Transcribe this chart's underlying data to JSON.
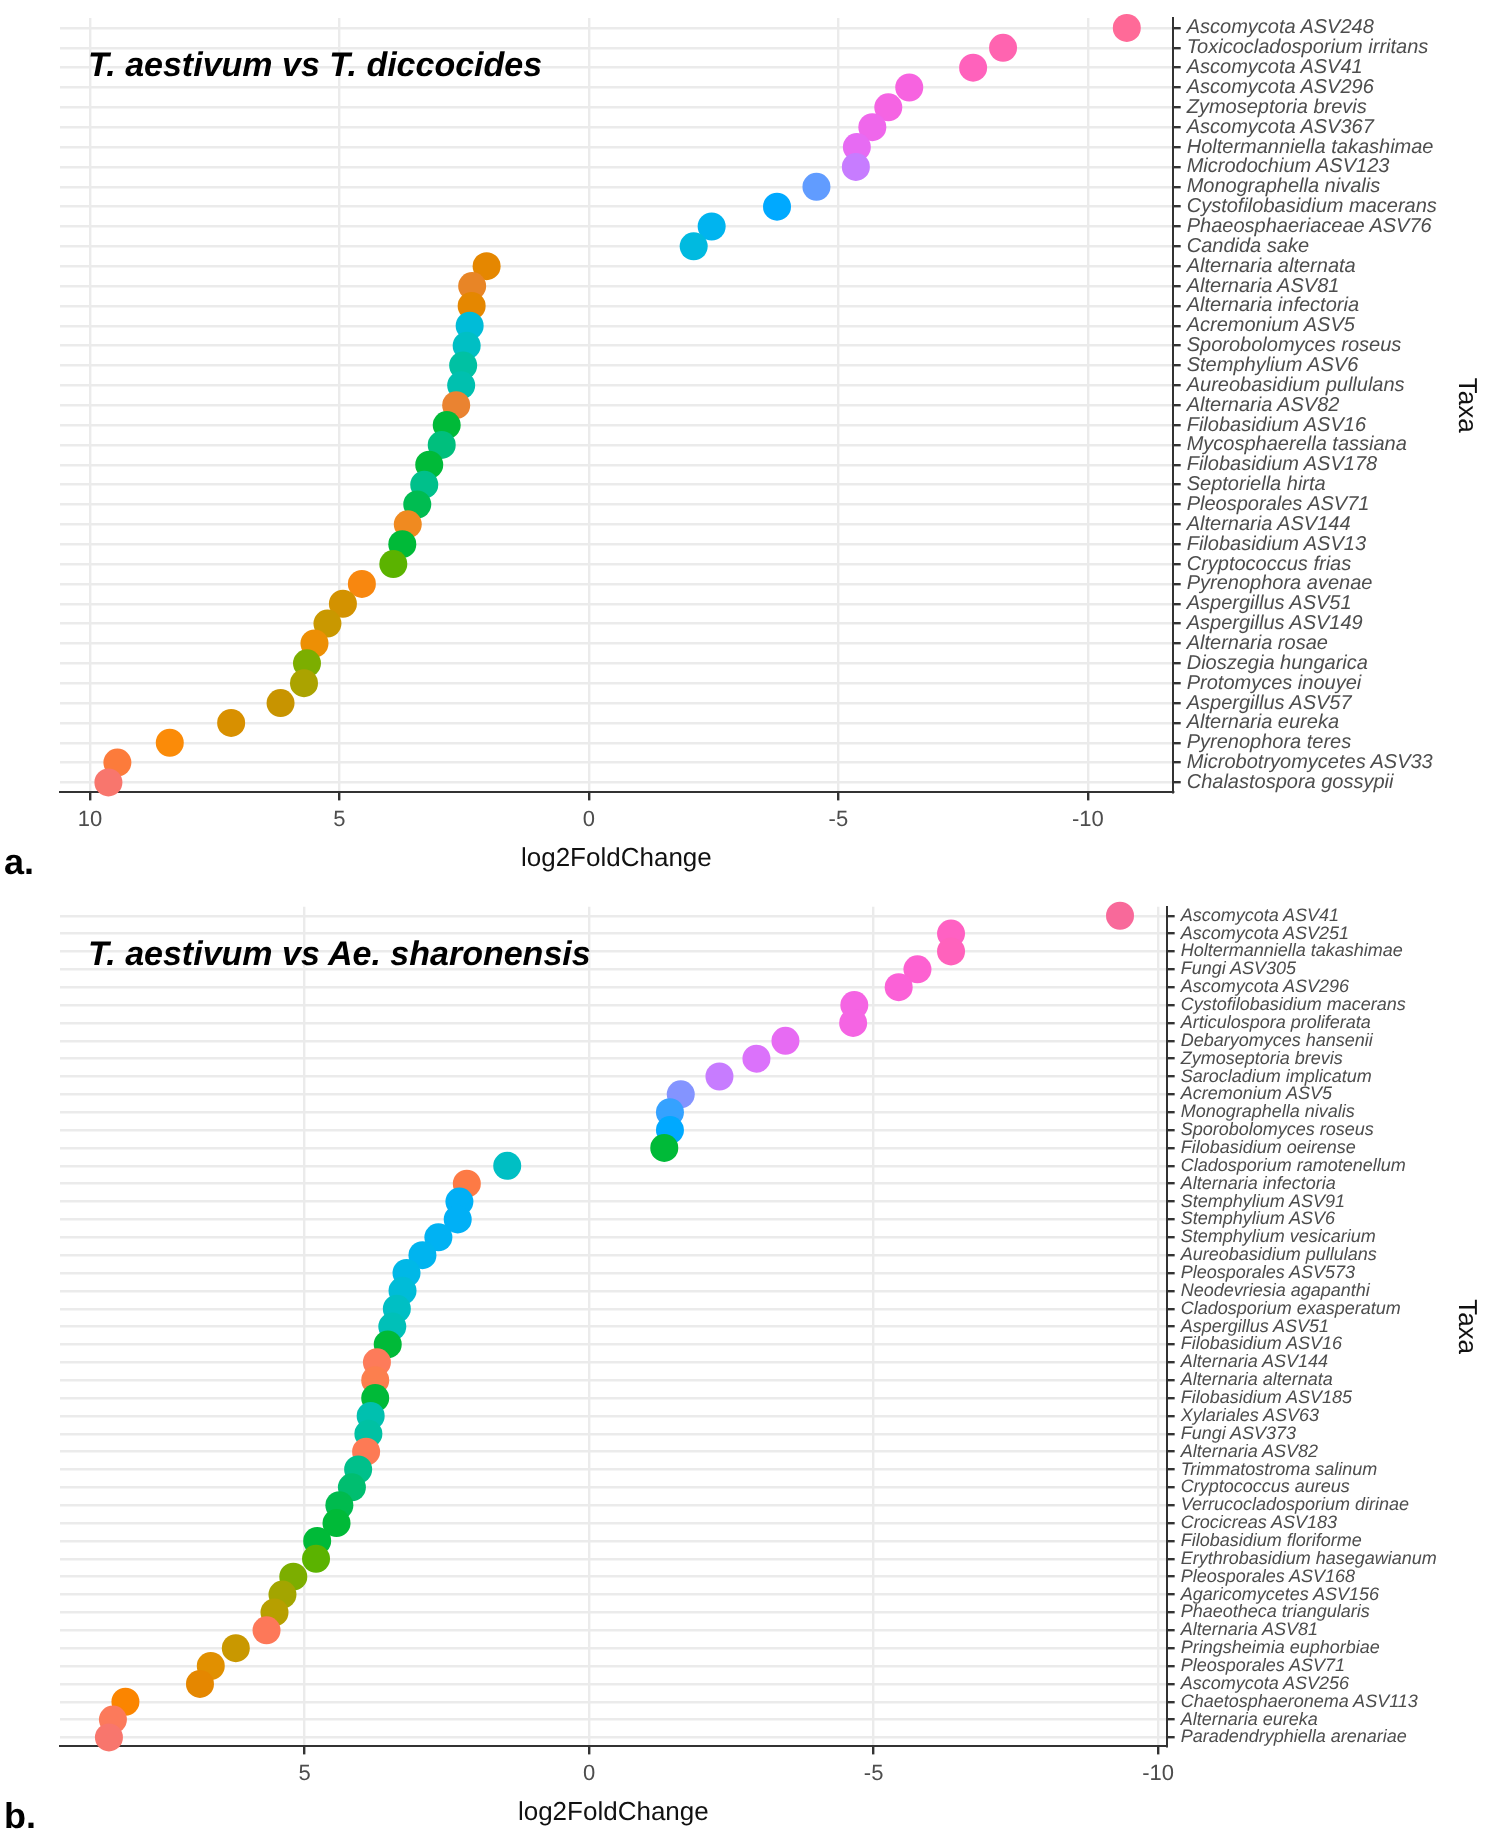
{
  "chart_data": [
    {
      "type": "scatter",
      "orientation": "horizontal",
      "title": "T. aestivum vs T. diccocides",
      "xlabel": "log2FoldChange",
      "ylabel": "Taxa",
      "annotations": [
        "a."
      ],
      "categories": [
        "Ascomycota ASV248",
        "Toxicocladosporium irritans",
        "Ascomycota ASV41",
        "Ascomycota ASV296",
        "Zymoseptoria brevis",
        "Ascomycota ASV367",
        "Holtermanniella takashimae",
        "Microdochium ASV123",
        "Monographella nivalis",
        "Cystofilobasidium macerans",
        "Phaeosphaeriaceae ASV76",
        "Candida sake",
        "Alternaria alternata",
        "Alternaria ASV81",
        "Alternaria infectoria",
        "Acremonium ASV5",
        "Sporobolomyces roseus",
        "Stemphylium ASV6",
        "Aureobasidium pullulans",
        "Alternaria ASV82",
        "Filobasidium ASV16",
        "Mycosphaerella tassiana",
        "Filobasidium ASV178",
        "Septoriella hirta",
        "Pleosporales ASV71",
        "Alternaria ASV144",
        "Filobasidium ASV13",
        "Cryptococcus frias",
        "Pyrenophora avenae",
        "Aspergillus ASV51",
        "Aspergillus ASV149",
        "Alternaria rosae",
        "Dioszegia hungarica",
        "Protomyces inouyei",
        "Aspergillus ASV57",
        "Alternaria eureka",
        "Pyrenophora teres",
        "Microbotryomycetes ASV33",
        "Chalastospora gossypii"
      ],
      "values": [
        -10.78,
        -8.3,
        -7.7,
        -6.42,
        -6.0,
        -5.68,
        -5.37,
        -5.35,
        -4.56,
        -3.77,
        -2.46,
        -2.1,
        2.05,
        2.34,
        2.35,
        2.39,
        2.45,
        2.52,
        2.56,
        2.66,
        2.85,
        2.95,
        3.2,
        3.3,
        3.44,
        3.63,
        3.74,
        3.92,
        4.55,
        4.93,
        5.24,
        5.5,
        5.65,
        5.71,
        6.18,
        7.17,
        8.4,
        9.45,
        9.63
      ],
      "colors": [
        "#ff6a98",
        "#ff64b0",
        "#ff62bc",
        "#f763e0",
        "#f564e3",
        "#ef67eb",
        "#e76bf3",
        "#c77cff",
        "#619cff",
        "#00a9ff",
        "#00b4ef",
        "#00bae0",
        "#e58700",
        "#e88526",
        "#e58700",
        "#00bcd8",
        "#00bfc4",
        "#00c1a3",
        "#00c0af",
        "#ea8331",
        "#00ba38",
        "#00bf7d",
        "#00ba38",
        "#00c08b",
        "#00bc51",
        "#f08a20",
        "#00ba38",
        "#5bb300",
        "#f8870f",
        "#d39200",
        "#c99800",
        "#ed8f04",
        "#7cae00",
        "#aba300",
        "#c89400",
        "#d89000",
        "#fb8b08",
        "#fc7b3b",
        "#f8766d"
      ],
      "xlim": [
        10.6,
        -11.7
      ],
      "xticks": [
        10,
        5,
        0,
        -5,
        -10
      ],
      "grid": true,
      "marker": "circle"
    },
    {
      "type": "scatter",
      "orientation": "horizontal",
      "title": "T. aestivum vs Ae. sharonensis",
      "xlabel": "log2FoldChange",
      "ylabel": "Taxa",
      "annotations": [
        "b."
      ],
      "categories": [
        "Ascomycota ASV41",
        "Ascomycota ASV251",
        "Holtermanniella takashimae",
        "Fungi ASV305",
        "Ascomycota ASV296",
        "Cystofilobasidium macerans",
        "Articulospora proliferata",
        "Debaryomyces hansenii",
        "Zymoseptoria brevis",
        "Sarocladium implicatum",
        "Acremonium ASV5",
        "Monographella nivalis",
        "Sporobolomyces roseus",
        "Filobasidium oeirense",
        "Cladosporium ramotenellum",
        "Alternaria infectoria",
        "Stemphylium ASV91",
        "Stemphylium ASV6",
        "Stemphylium vesicarium",
        "Aureobasidium pullulans",
        "Pleosporales ASV573",
        "Neodevriesia agapanthi",
        "Cladosporium exasperatum",
        "Aspergillus ASV51",
        "Filobasidium ASV16",
        "Alternaria ASV144",
        "Alternaria alternata",
        "Filobasidium ASV185",
        "Xylariales ASV63",
        "Fungi ASV373",
        "Alternaria ASV82",
        "Trimmatostroma salinum",
        "Cryptococcus aureus",
        "Verrucocladosporium dirinae",
        "Crocicreas ASV183",
        "Filobasidium floriforme",
        "Erythrobasidium hasegawianum",
        "Pleosporales ASV168",
        "Agaricomycetes ASV156",
        "Phaeotheca triangularis",
        "Alternaria ASV81",
        "Pringsheimia euphorbiae",
        "Pleosporales ASV71",
        "Ascomycota ASV256",
        "Chaetosphaeronema ASV113",
        "Alternaria eureka",
        "Paradendryphiella arenariae"
      ],
      "values": [
        -9.33,
        -6.36,
        -6.36,
        -5.77,
        -5.44,
        -4.66,
        -4.64,
        -3.45,
        -2.94,
        -2.29,
        -1.61,
        -1.42,
        -1.42,
        -1.32,
        1.44,
        2.15,
        2.28,
        2.31,
        2.65,
        2.93,
        3.21,
        3.28,
        3.38,
        3.46,
        3.54,
        3.73,
        3.76,
        3.76,
        3.84,
        3.88,
        3.92,
        4.06,
        4.17,
        4.39,
        4.44,
        4.78,
        4.8,
        5.2,
        5.39,
        5.53,
        5.67,
        6.21,
        6.65,
        6.84,
        8.15,
        8.37,
        8.44
      ],
      "colors": [
        "#f8699a",
        "#ff61c3",
        "#ff62bc",
        "#fd61d1",
        "#fb61d7",
        "#f564e3",
        "#f564e3",
        "#e76bf3",
        "#db72fb",
        "#c77cff",
        "#8494ff",
        "#35a2ff",
        "#00a9ff",
        "#00ba38",
        "#00bfc4",
        "#fd7a45",
        "#00b0f6",
        "#00b0f6",
        "#00b2f3",
        "#00b4ef",
        "#00b8e7",
        "#00bcd8",
        "#00bfc4",
        "#00c0b8",
        "#00ba38",
        "#fd7b5a",
        "#fc7f4e",
        "#00ba38",
        "#00c0af",
        "#00c1a3",
        "#fd7a55",
        "#00c08b",
        "#00be70",
        "#00bb4e",
        "#00ba38",
        "#00ba38",
        "#5bb300",
        "#7cae00",
        "#a3a500",
        "#b79f00",
        "#fd7859",
        "#c99800",
        "#e19000",
        "#e58700",
        "#fb8500",
        "#fc7a5b",
        "#f8766d"
      ],
      "xlim": [
        9.3,
        -10.15
      ],
      "xticks": [
        5,
        0,
        -5,
        -10
      ],
      "grid": true,
      "marker": "circle"
    }
  ]
}
